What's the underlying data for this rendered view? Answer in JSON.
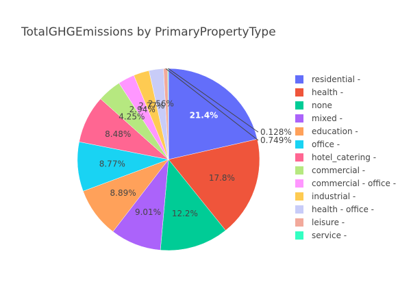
{
  "chart_data": {
    "type": "pie",
    "title": "TotalGHGEmissions by PrimaryPropertyType",
    "legend_position": "right",
    "text_labels_inside": "percent",
    "slices": [
      {
        "label": "residential -",
        "percent_text": "21.4%",
        "value": 21.4,
        "color": "#636EFA"
      },
      {
        "label": "health -",
        "percent_text": "17.8%",
        "value": 17.8,
        "color": "#EF553B"
      },
      {
        "label": "none",
        "percent_text": "12.2%",
        "value": 12.2,
        "color": "#00CC96"
      },
      {
        "label": "mixed -",
        "percent_text": "9.01%",
        "value": 9.01,
        "color": "#AB63FA"
      },
      {
        "label": "education -",
        "percent_text": "8.89%",
        "value": 8.89,
        "color": "#FFA15A"
      },
      {
        "label": "office -",
        "percent_text": "8.77%",
        "value": 8.77,
        "color": "#19D3F3"
      },
      {
        "label": "hotel_catering -",
        "percent_text": "8.48%",
        "value": 8.48,
        "color": "#FF6692"
      },
      {
        "label": "commercial -",
        "percent_text": "4.25%",
        "value": 4.25,
        "color": "#B6E880"
      },
      {
        "label": "commercial - office -",
        "percent_text": "2.94%",
        "value": 2.94,
        "color": "#FF97FF"
      },
      {
        "label": "industrial -",
        "percent_text": "2.77%",
        "value": 2.77,
        "color": "#FECB52"
      },
      {
        "label": "health - office -",
        "percent_text": "2.56%",
        "value": 2.56,
        "color": "#C8CCF8"
      },
      {
        "label": "leisure -",
        "percent_text": "0.749%",
        "value": 0.749,
        "color": "#F2A99B"
      },
      {
        "label": "service -",
        "percent_text": "0.128%",
        "value": 0.128,
        "color": "#33FFC2"
      }
    ]
  }
}
